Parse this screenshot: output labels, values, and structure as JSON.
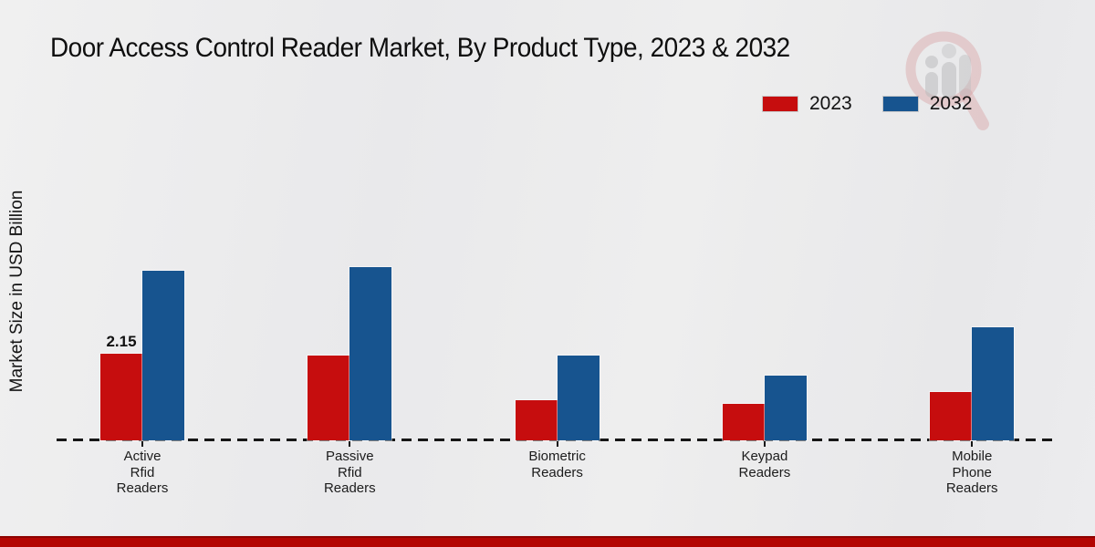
{
  "title": "Door Access Control Reader Market, By Product Type, 2023 & 2032",
  "ylabel": "Market Size in USD Billion",
  "legend": {
    "items": [
      {
        "label": "2023",
        "color": "#c60d0e"
      },
      {
        "label": "2032",
        "color": "#17548f"
      }
    ]
  },
  "colors": {
    "series_2023": "#c60d0e",
    "series_2032": "#17548f",
    "background": "#ebebec",
    "baseline": "#161616",
    "bottom_bar": "#b40502"
  },
  "chart_data": {
    "type": "bar",
    "title": "Door Access Control Reader Market, By Product Type, 2023 & 2032",
    "xlabel": "",
    "ylabel": "Market Size in USD Billion",
    "categories": [
      "Active\nRfid\nReaders",
      "Passive\nRfid\nReaders",
      "Biometric\nReaders",
      "Keypad\nReaders",
      "Mobile\nPhone\nReaders"
    ],
    "series": [
      {
        "name": "2023",
        "color": "#c60d0e",
        "values": [
          2.15,
          2.1,
          1.0,
          0.9,
          1.2
        ],
        "data_labels": [
          "2.15",
          "",
          "",
          "",
          ""
        ]
      },
      {
        "name": "2032",
        "color": "#17548f",
        "values": [
          4.2,
          4.3,
          2.1,
          1.6,
          2.8
        ],
        "data_labels": [
          "",
          "",
          "",
          "",
          ""
        ]
      }
    ],
    "ylim": [
      0,
      5
    ],
    "grid": false,
    "legend_position": "top-right",
    "baseline_style": "dashed",
    "y_axis_ticks_visible": false
  }
}
